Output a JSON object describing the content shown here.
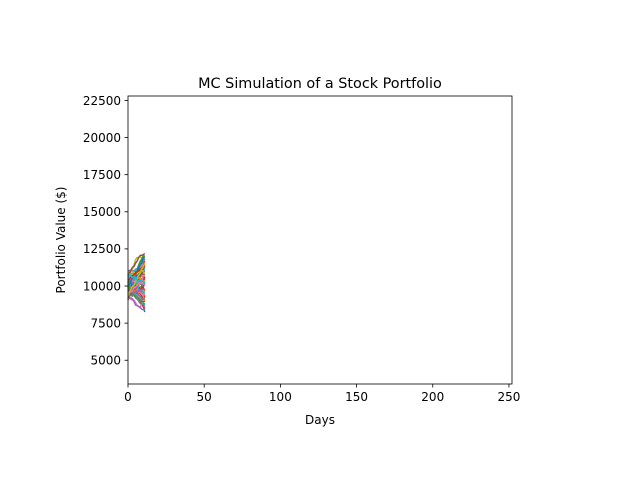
{
  "chart_data": {
    "type": "line",
    "title": "MC Simulation of a Stock Portfolio",
    "xlabel": "Days",
    "ylabel": "Portfolio Value ($)",
    "xlim": [
      0,
      252
    ],
    "ylim": [
      3400,
      22800
    ],
    "xticks": [
      0,
      50,
      100,
      150,
      200,
      250
    ],
    "yticks": [
      5000,
      7500,
      10000,
      12500,
      15000,
      17500,
      20000,
      22500
    ],
    "xtick_labels": [
      "0",
      "50",
      "100",
      "150",
      "200",
      "250"
    ],
    "ytick_labels": [
      "5000",
      "7500",
      "10000",
      "12500",
      "15000",
      "17500",
      "20000",
      "22500"
    ],
    "grid": false,
    "legend": "none",
    "simulation": {
      "initial_value": 10000,
      "days_simulated": 12,
      "num_paths": 60,
      "min_end_value": 8400,
      "max_end_value": 12200
    },
    "series_colors": [
      "#1f77b4",
      "#ff7f0e",
      "#2ca02c",
      "#d62728",
      "#9467bd",
      "#8c564b",
      "#e377c2",
      "#7f7f7f",
      "#bcbd22",
      "#17becf"
    ]
  }
}
